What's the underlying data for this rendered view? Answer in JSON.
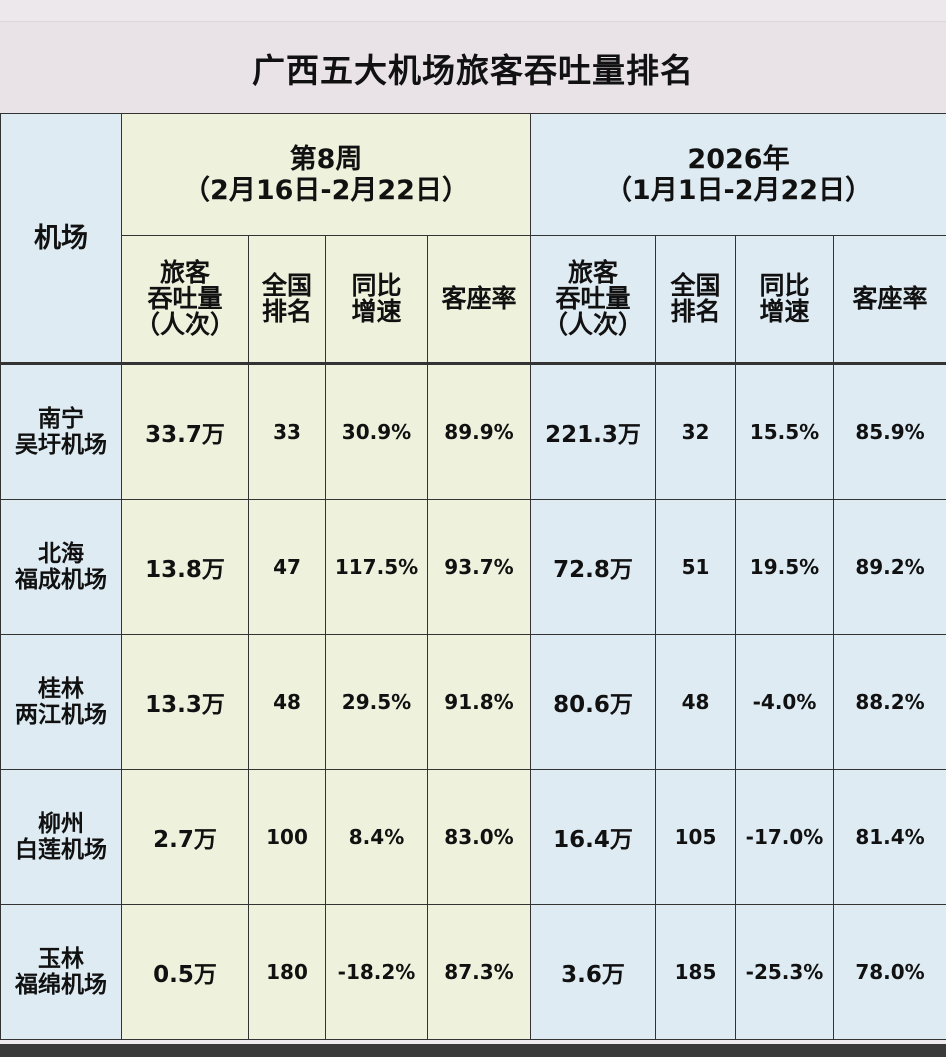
{
  "title": "广西五大机场旅客吞吐量排名",
  "header": {
    "airport_label": "机场",
    "week_group": {
      "line1": "第8周",
      "line2": "（2月16日-2月22日）"
    },
    "year_group": {
      "line1": "2026年",
      "line2": "（1月1日-2月22日）"
    },
    "columns": {
      "throughput": [
        "旅客",
        "吞吐量",
        "（人次）"
      ],
      "rank": [
        "全国",
        "排名"
      ],
      "growth": [
        "同比",
        "增速"
      ],
      "load_factor": "客座率"
    }
  },
  "rows": [
    {
      "airport": [
        "南宁",
        "吴圩机场"
      ],
      "week": [
        "33.7万",
        "33",
        "30.9%",
        "89.9%"
      ],
      "year": [
        "221.3万",
        "32",
        "15.5%",
        "85.9%"
      ]
    },
    {
      "airport": [
        "北海",
        "福成机场"
      ],
      "week": [
        "13.8万",
        "47",
        "117.5%",
        "93.7%"
      ],
      "year": [
        "72.8万",
        "51",
        "19.5%",
        "89.2%"
      ]
    },
    {
      "airport": [
        "桂林",
        "两江机场"
      ],
      "week": [
        "13.3万",
        "48",
        "29.5%",
        "91.8%"
      ],
      "year": [
        "80.6万",
        "48",
        "-4.0%",
        "88.2%"
      ]
    },
    {
      "airport": [
        "柳州",
        "白莲机场"
      ],
      "week": [
        "2.7万",
        "100",
        "8.4%",
        "83.0%"
      ],
      "year": [
        "16.4万",
        "105",
        "-17.0%",
        "81.4%"
      ]
    },
    {
      "airport": [
        "玉林",
        "福绵机场"
      ],
      "week": [
        "0.5万",
        "180",
        "-18.2%",
        "87.3%"
      ],
      "year": [
        "3.6万",
        "185",
        "-25.3%",
        "78.0%"
      ]
    }
  ],
  "colors": {
    "week_bg": "#eef2dd",
    "year_bg": "#deebf3",
    "title_bg": "#e9e3e8"
  }
}
